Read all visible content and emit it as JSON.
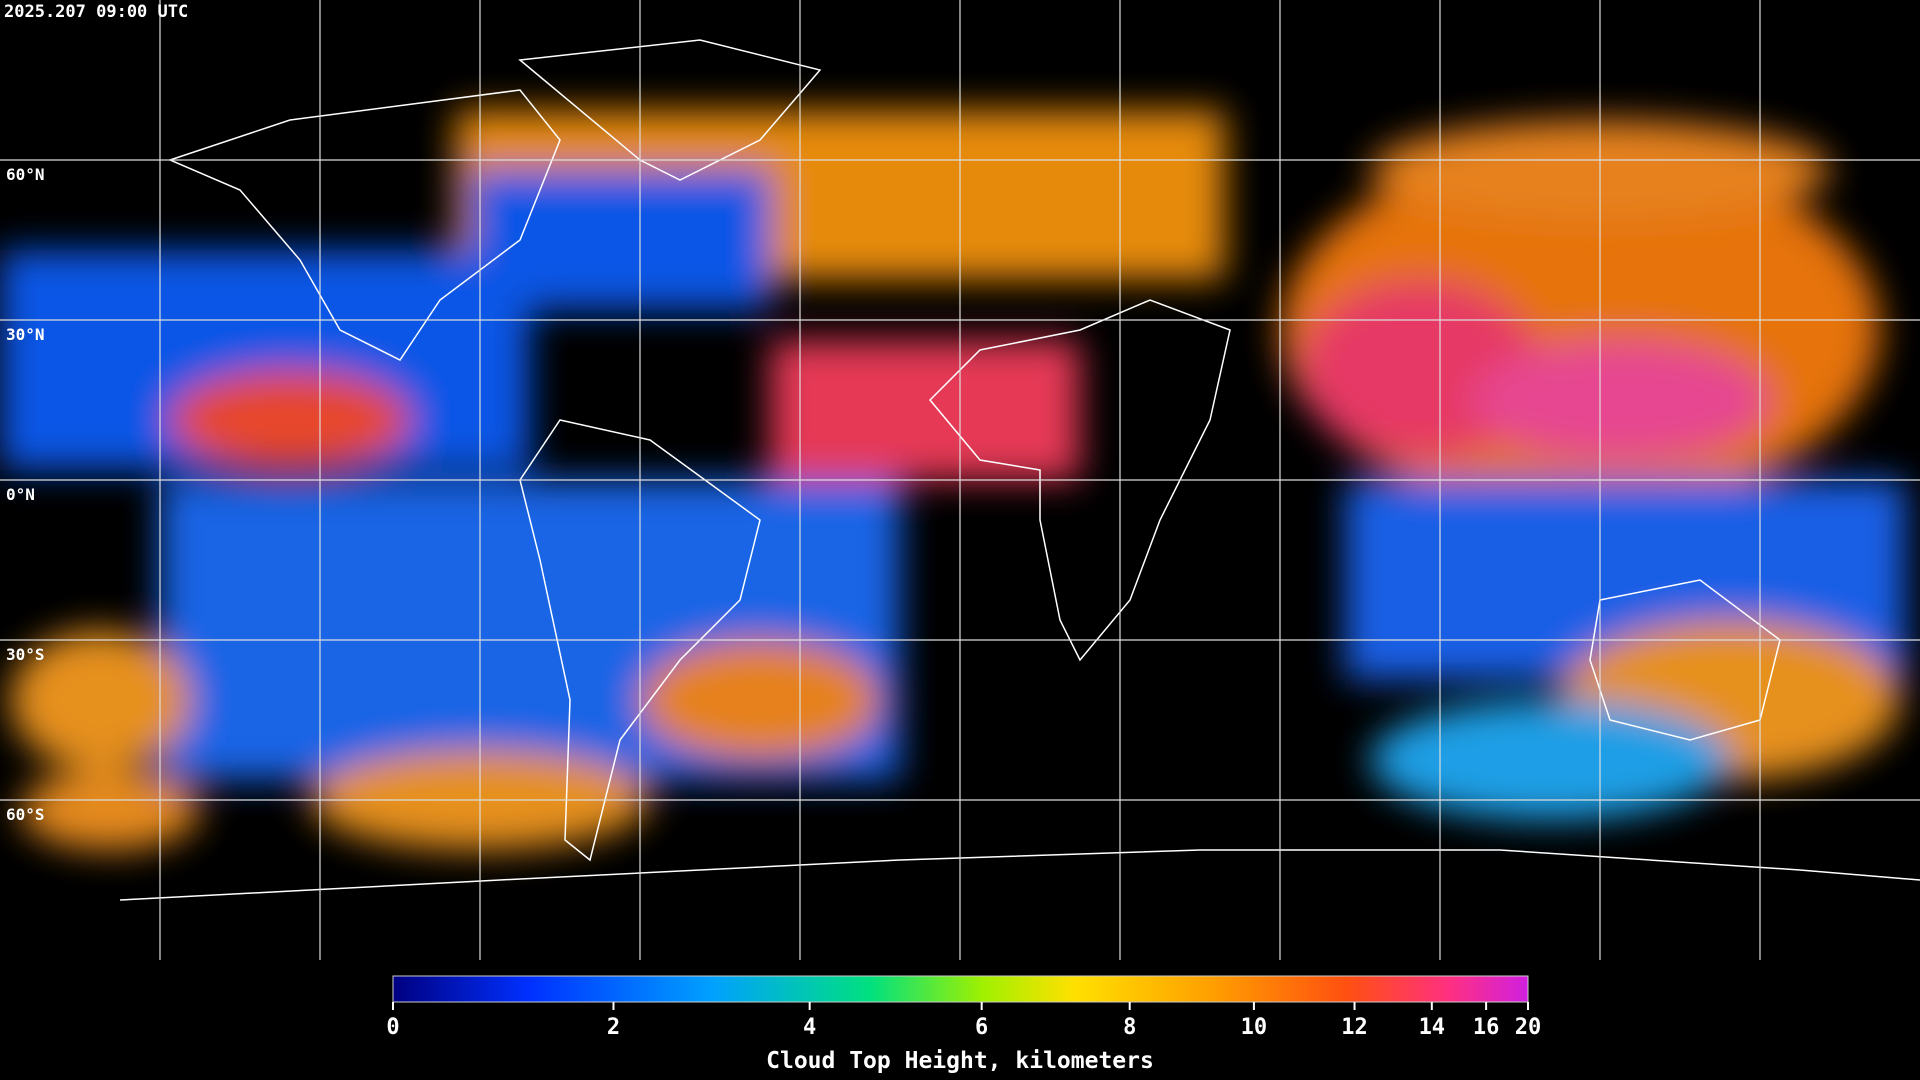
{
  "header": {
    "timestamp": "2025.207 09:00 UTC"
  },
  "map": {
    "lat_labels": [
      "60°N",
      "30°N",
      "0°N",
      "30°S",
      "60°S"
    ]
  },
  "colorbar": {
    "title": "Cloud Top Height, kilometers",
    "range": [
      0,
      20
    ],
    "ticks": [
      0,
      2,
      4,
      6,
      8,
      10,
      12,
      14,
      16,
      20
    ]
  }
}
